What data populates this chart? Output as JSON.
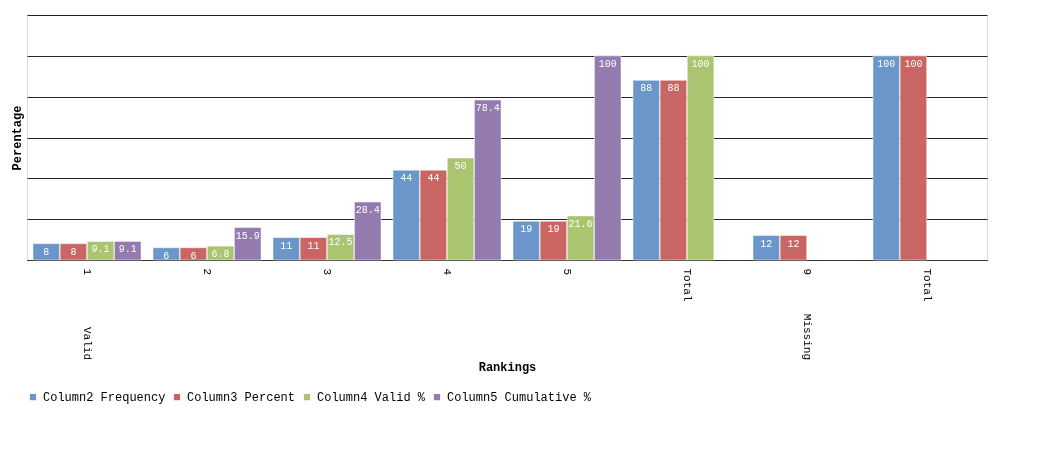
{
  "chart_data": {
    "type": "bar",
    "xlabel": "Rankings",
    "ylabel": "Perentage",
    "categories": [
      "1",
      "2",
      "3",
      "4",
      "5",
      "Total",
      "9",
      "Total"
    ],
    "series": [
      {
        "name": "Column2 Frequency",
        "color": "#6a96c9",
        "values": [
          8,
          6,
          11,
          44,
          19,
          88,
          12,
          100
        ]
      },
      {
        "name": "Column3 Percent",
        "color": "#c96664",
        "values": [
          8,
          6,
          11,
          44,
          19,
          88,
          12,
          100
        ]
      },
      {
        "name": "Column4 Valid %",
        "color": "#abc46f",
        "values": [
          9.1,
          6.8,
          12.5,
          50,
          21.6,
          100,
          null,
          null
        ]
      },
      {
        "name": "Column5 Cumulative %",
        "color": "#937bb0",
        "values": [
          9.1,
          15.9,
          28.4,
          78.4,
          100,
          null,
          null,
          null
        ]
      }
    ],
    "annotations": [
      "Valid",
      "Missing"
    ],
    "ylim": [
      0,
      120
    ],
    "yticks": [
      {
        "value": 0,
        "label": null
      },
      {
        "value": 20,
        "label": null
      },
      {
        "value": 40,
        "label": null
      },
      {
        "value": 60,
        "label": null
      },
      {
        "value": 80,
        "label": null
      },
      {
        "value": 100,
        "label": null
      },
      {
        "value": 120,
        "label": null
      }
    ],
    "tick_labels": "x",
    "grid": "y",
    "data_labels": true,
    "legend": "bottom"
  }
}
